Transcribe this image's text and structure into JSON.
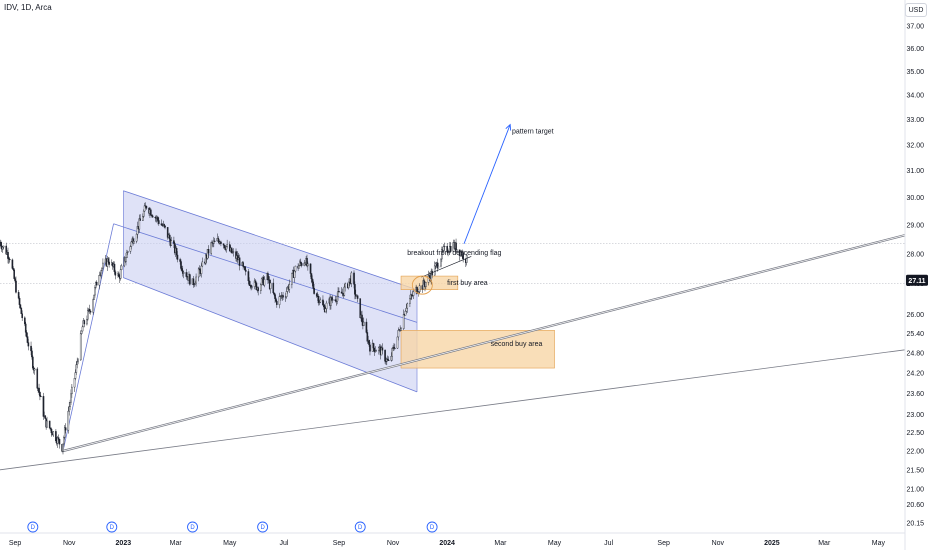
{
  "header": {
    "symbol": "IDV, 1D, Arca",
    "currency": "USD"
  },
  "colors": {
    "up": "#089981",
    "down": "#f23645",
    "candle_ink": "#1e222d",
    "channel_fill": "#c5cbf0",
    "channel_line": "#6b7bd6",
    "zone_fill": "#f7d6a6",
    "zone_line": "#e3a04f",
    "trend_line": "#787b86",
    "target_arrow": "#2962ff",
    "last_price_bg": "#131722",
    "dividend": "#2962ff"
  },
  "chart_data": {
    "type": "candlestick",
    "y_axis": {
      "scale": "log",
      "range": [
        19.9,
        38.2
      ],
      "ticks": [
        "37.00",
        "36.00",
        "35.00",
        "34.00",
        "33.00",
        "32.00",
        "31.00",
        "30.00",
        "29.00",
        "28.00",
        "27.00",
        "26.00",
        "25.40",
        "24.80",
        "24.20",
        "23.60",
        "23.00",
        "22.50",
        "22.00",
        "21.50",
        "21.00",
        "20.60",
        "20.15"
      ]
    },
    "x_axis": {
      "range": [
        "2022-08-15",
        "2025-05-31"
      ],
      "ticks": [
        {
          "label": "Sep",
          "date": "2022-09-01"
        },
        {
          "label": "Nov",
          "date": "2022-11-01"
        },
        {
          "label": "2023",
          "date": "2023-01-01"
        },
        {
          "label": "Mar",
          "date": "2023-03-01"
        },
        {
          "label": "May",
          "date": "2023-05-01"
        },
        {
          "label": "Jul",
          "date": "2023-07-01"
        },
        {
          "label": "Sep",
          "date": "2023-09-01"
        },
        {
          "label": "Nov",
          "date": "2023-11-01"
        },
        {
          "label": "2024",
          "date": "2024-01-01"
        },
        {
          "label": "Mar",
          "date": "2024-03-01"
        },
        {
          "label": "May",
          "date": "2024-05-01"
        },
        {
          "label": "Jul",
          "date": "2024-07-01"
        },
        {
          "label": "Sep",
          "date": "2024-09-01"
        },
        {
          "label": "Nov",
          "date": "2024-11-01"
        },
        {
          "label": "2025",
          "date": "2025-01-01"
        },
        {
          "label": "Mar",
          "date": "2025-03-01"
        },
        {
          "label": "May",
          "date": "2025-05-01"
        }
      ]
    },
    "price_path": [
      [
        "2022-08-15",
        28.4
      ],
      [
        "2022-08-26",
        27.9
      ],
      [
        "2022-09-05",
        26.4
      ],
      [
        "2022-09-15",
        25.2
      ],
      [
        "2022-09-26",
        23.9
      ],
      [
        "2022-10-05",
        22.8
      ],
      [
        "2022-10-14",
        22.5
      ],
      [
        "2022-10-24",
        22.1
      ],
      [
        "2022-10-31",
        23.1
      ],
      [
        "2022-11-08",
        24.2
      ],
      [
        "2022-11-16",
        25.6
      ],
      [
        "2022-11-25",
        26.2
      ],
      [
        "2022-12-05",
        27.4
      ],
      [
        "2022-12-15",
        27.8
      ],
      [
        "2022-12-27",
        27.2
      ],
      [
        "2023-01-06",
        28.1
      ],
      [
        "2023-01-17",
        28.9
      ],
      [
        "2023-01-27",
        29.7
      ],
      [
        "2023-02-06",
        29.3
      ],
      [
        "2023-02-16",
        28.9
      ],
      [
        "2023-02-27",
        28.2
      ],
      [
        "2023-03-09",
        27.5
      ],
      [
        "2023-03-20",
        27.0
      ],
      [
        "2023-03-30",
        27.5
      ],
      [
        "2023-04-10",
        28.3
      ],
      [
        "2023-04-20",
        28.5
      ],
      [
        "2023-05-01",
        28.1
      ],
      [
        "2023-05-11",
        27.8
      ],
      [
        "2023-05-22",
        27.1
      ],
      [
        "2023-06-01",
        26.9
      ],
      [
        "2023-06-12",
        27.2
      ],
      [
        "2023-06-22",
        26.4
      ],
      [
        "2023-07-03",
        26.7
      ],
      [
        "2023-07-14",
        27.5
      ],
      [
        "2023-07-25",
        27.8
      ],
      [
        "2023-08-04",
        26.8
      ],
      [
        "2023-08-15",
        26.2
      ],
      [
        "2023-08-25",
        26.5
      ],
      [
        "2023-09-05",
        26.7
      ],
      [
        "2023-09-15",
        27.2
      ],
      [
        "2023-09-26",
        25.9
      ],
      [
        "2023-10-06",
        25.0
      ],
      [
        "2023-10-17",
        24.9
      ],
      [
        "2023-10-27",
        24.5
      ],
      [
        "2023-11-06",
        25.3
      ],
      [
        "2023-11-16",
        26.3
      ],
      [
        "2023-11-27",
        26.8
      ],
      [
        "2023-12-07",
        27.0
      ],
      [
        "2023-12-18",
        27.5
      ],
      [
        "2023-12-28",
        28.1
      ],
      [
        "2024-01-08",
        28.3
      ],
      [
        "2024-01-18",
        28.0
      ],
      [
        "2024-01-23",
        27.8
      ]
    ],
    "last_price": 27.11,
    "dividends": [
      "2022-09-21",
      "2022-12-19",
      "2023-03-20",
      "2023-06-07",
      "2023-09-25",
      "2023-12-15"
    ],
    "dividend_marker": "D",
    "channel": {
      "upper": [
        [
          "2023-01-01",
          30.25
        ],
        [
          "2023-11-28",
          26.8
        ]
      ],
      "mid": [
        [
          "2022-12-21",
          29.05
        ],
        [
          "2023-11-28",
          25.75
        ]
      ],
      "lower": [
        [
          "2023-01-01",
          27.2
        ],
        [
          "2023-11-28",
          23.65
        ]
      ]
    },
    "rising_leg": [
      [
        "2022-10-25",
        22.0
      ],
      [
        "2022-12-21",
        29.05
      ]
    ],
    "target_arrow": [
      [
        "2024-01-20",
        28.35
      ],
      [
        "2024-03-12",
        32.8
      ]
    ],
    "trend_lines": [
      [
        [
          "2022-08-15",
          21.5
        ],
        [
          "2025-05-31",
          24.9
        ]
      ],
      [
        [
          "2022-10-25",
          22.0
        ],
        [
          "2025-05-31",
          28.65
        ]
      ]
    ],
    "zones": [
      {
        "from": "2023-11-10",
        "to": "2024-01-13",
        "top": 27.25,
        "bottom": 26.8
      },
      {
        "from": "2023-11-10",
        "to": "2024-05-01",
        "top": 25.5,
        "bottom": 24.35
      }
    ],
    "breakout_ellipse": {
      "date": "2023-12-04",
      "price": 26.95
    },
    "annotations": {
      "breakout": {
        "text": "breakout from descending flag",
        "date": "2023-11-17",
        "price": 28.05
      },
      "first_buy": {
        "text": "first buy area",
        "date": "2024-01-01",
        "price": 27.03
      },
      "second_buy": {
        "text": "second buy area",
        "date": "2024-02-19",
        "price": 25.1
      },
      "pattern_target": {
        "text": "pattern target",
        "date": "2024-03-14",
        "price": 32.55
      }
    },
    "horizontal_refs": [
      28.35,
      27.0
    ]
  }
}
